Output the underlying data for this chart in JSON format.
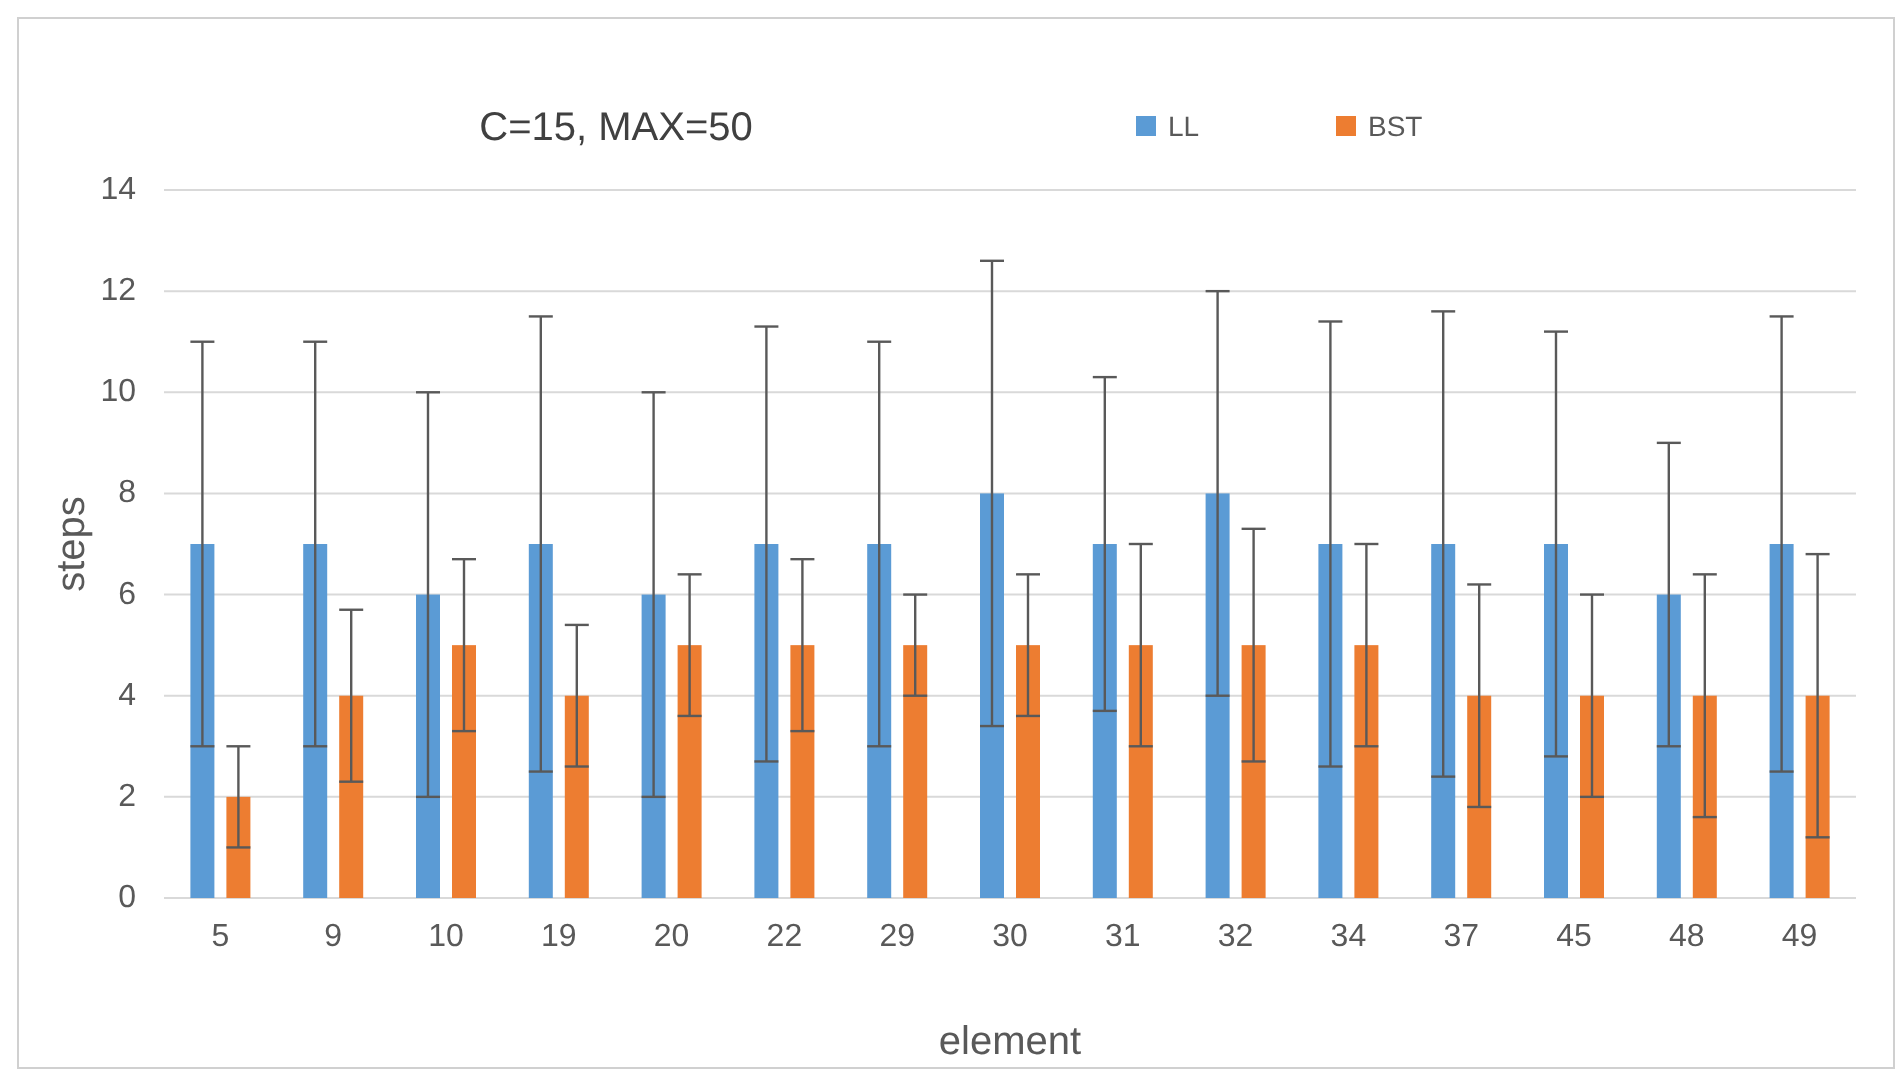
{
  "chart_data": {
    "type": "bar",
    "title": "C=15, MAX=50",
    "xlabel": "element",
    "ylabel": "steps",
    "categories": [
      "5",
      "9",
      "10",
      "19",
      "20",
      "22",
      "29",
      "30",
      "31",
      "32",
      "34",
      "37",
      "45",
      "48",
      "49"
    ],
    "series": [
      {
        "name": "LL",
        "color": "#5b9bd5",
        "values": [
          7,
          7,
          6,
          7,
          6,
          7,
          7,
          8,
          7,
          8,
          7,
          7,
          7,
          6,
          7
        ],
        "errors": [
          [
            3,
            11
          ],
          [
            3,
            11
          ],
          [
            2,
            10
          ],
          [
            2.5,
            11.5
          ],
          [
            2,
            10
          ],
          [
            2.7,
            11.3
          ],
          [
            3,
            11
          ],
          [
            3.4,
            12.6
          ],
          [
            3.7,
            10.3
          ],
          [
            4,
            12
          ],
          [
            2.6,
            11.4
          ],
          [
            2.4,
            11.6
          ],
          [
            2.8,
            11.2
          ],
          [
            3,
            9
          ],
          [
            2.5,
            11.5
          ]
        ]
      },
      {
        "name": "BST",
        "color": "#ed7d31",
        "values": [
          2,
          4,
          5,
          4,
          5,
          5,
          5,
          5,
          5,
          5,
          5,
          4,
          4,
          4,
          4
        ],
        "errors": [
          [
            1,
            3
          ],
          [
            2.3,
            5.7
          ],
          [
            3.3,
            6.7
          ],
          [
            2.6,
            5.4
          ],
          [
            3.6,
            6.4
          ],
          [
            3.3,
            6.7
          ],
          [
            4,
            6
          ],
          [
            3.6,
            6.4
          ],
          [
            3,
            7
          ],
          [
            2.7,
            7.3
          ],
          [
            3,
            7
          ],
          [
            1.8,
            6.2
          ],
          [
            2,
            6
          ],
          [
            1.6,
            6.4
          ],
          [
            1.2,
            6.8
          ]
        ]
      }
    ],
    "ylim": [
      0,
      14
    ],
    "yticks": [
      0,
      2,
      4,
      6,
      8,
      10,
      12,
      14
    ],
    "grid": "y",
    "legend": "top"
  }
}
